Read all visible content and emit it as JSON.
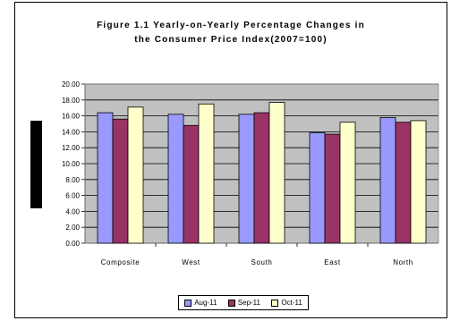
{
  "chart_data": {
    "type": "bar",
    "title_lines": [
      "Figure 1.1 Yearly-on-Yearly Percentage Changes in",
      "the Consumer Price Index(2007=100)"
    ],
    "categories": [
      "Composite",
      "West",
      "South",
      "East",
      "North"
    ],
    "series": [
      {
        "name": "Aug-11",
        "color": "#9999FF",
        "values": [
          16.4,
          16.2,
          16.2,
          13.9,
          15.8
        ]
      },
      {
        "name": "Sep-11",
        "color": "#993366",
        "values": [
          15.6,
          14.8,
          16.4,
          13.7,
          15.2
        ]
      },
      {
        "name": "Oct-11",
        "color": "#FFFFCC",
        "values": [
          17.1,
          17.5,
          17.7,
          15.2,
          15.4
        ]
      }
    ],
    "ylim": [
      0,
      20
    ],
    "yticks": [
      "0.00",
      "2.00",
      "4.00",
      "6.00",
      "8.00",
      "10.00",
      "12.00",
      "14.00",
      "16.00",
      "18.00",
      "20.00"
    ],
    "grid": true,
    "plot_background": "#C0C0C0",
    "legend_position": "bottom"
  }
}
